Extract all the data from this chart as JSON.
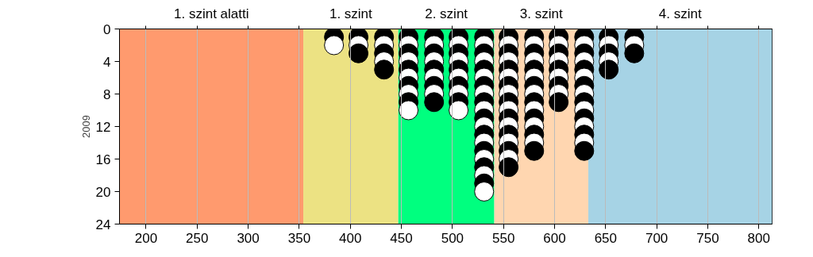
{
  "chart_data": {
    "type": "scatter",
    "ylabel": "2009",
    "x": [
      384,
      384,
      408,
      408,
      408,
      433,
      433,
      433,
      433,
      433,
      457,
      457,
      457,
      457,
      457,
      457,
      457,
      457,
      457,
      457,
      482,
      482,
      482,
      482,
      482,
      482,
      482,
      482,
      482,
      506,
      506,
      506,
      506,
      506,
      506,
      506,
      506,
      506,
      506,
      531,
      531,
      531,
      531,
      531,
      531,
      531,
      531,
      531,
      531,
      531,
      531,
      531,
      531,
      531,
      531,
      531,
      531,
      531,
      531,
      555,
      555,
      555,
      555,
      555,
      555,
      555,
      555,
      555,
      555,
      555,
      555,
      555,
      555,
      555,
      555,
      555,
      580,
      580,
      580,
      580,
      580,
      580,
      580,
      580,
      580,
      580,
      580,
      580,
      580,
      580,
      580,
      604,
      604,
      604,
      604,
      604,
      604,
      604,
      604,
      604,
      629,
      629,
      629,
      629,
      629,
      629,
      629,
      629,
      629,
      629,
      629,
      629,
      629,
      629,
      629,
      653,
      653,
      653,
      653,
      653,
      678,
      678,
      678
    ],
    "values": [
      1,
      2,
      1,
      2,
      3,
      1,
      2,
      3,
      4,
      5,
      1,
      2,
      3,
      4,
      5,
      6,
      7,
      8,
      9,
      10,
      1,
      2,
      3,
      4,
      5,
      6,
      7,
      8,
      9,
      1,
      2,
      3,
      4,
      5,
      6,
      7,
      8,
      9,
      10,
      1,
      2,
      3,
      4,
      5,
      6,
      7,
      8,
      9,
      10,
      11,
      12,
      13,
      14,
      15,
      16,
      17,
      18,
      19,
      20,
      1,
      2,
      3,
      4,
      5,
      6,
      7,
      8,
      9,
      10,
      11,
      12,
      13,
      14,
      15,
      16,
      17,
      1,
      2,
      3,
      4,
      5,
      6,
      7,
      8,
      9,
      10,
      11,
      12,
      13,
      14,
      15,
      1,
      2,
      3,
      4,
      5,
      6,
      7,
      8,
      9,
      1,
      2,
      3,
      4,
      5,
      6,
      7,
      8,
      9,
      10,
      11,
      12,
      13,
      14,
      15,
      1,
      2,
      3,
      4,
      5,
      1,
      2,
      3
    ],
    "colors": [
      "#000000",
      "#ffffff",
      "#000000",
      "#ffffff",
      "#000000",
      "#000000",
      "#ffffff",
      "#000000",
      "#ffffff",
      "#000000",
      "#000000",
      "#ffffff",
      "#000000",
      "#ffffff",
      "#000000",
      "#ffffff",
      "#000000",
      "#ffffff",
      "#000000",
      "#ffffff",
      "#000000",
      "#ffffff",
      "#000000",
      "#ffffff",
      "#000000",
      "#ffffff",
      "#000000",
      "#ffffff",
      "#000000",
      "#000000",
      "#ffffff",
      "#000000",
      "#ffffff",
      "#000000",
      "#ffffff",
      "#000000",
      "#ffffff",
      "#000000",
      "#ffffff",
      "#000000",
      "#ffffff",
      "#000000",
      "#ffffff",
      "#000000",
      "#ffffff",
      "#000000",
      "#ffffff",
      "#000000",
      "#ffffff",
      "#000000",
      "#ffffff",
      "#000000",
      "#ffffff",
      "#000000",
      "#ffffff",
      "#000000",
      "#ffffff",
      "#000000",
      "#ffffff",
      "#000000",
      "#ffffff",
      "#000000",
      "#ffffff",
      "#000000",
      "#ffffff",
      "#000000",
      "#ffffff",
      "#000000",
      "#ffffff",
      "#000000",
      "#ffffff",
      "#000000",
      "#ffffff",
      "#000000",
      "#ffffff",
      "#000000",
      "#000000",
      "#ffffff",
      "#000000",
      "#ffffff",
      "#000000",
      "#ffffff",
      "#000000",
      "#ffffff",
      "#000000",
      "#ffffff",
      "#000000",
      "#ffffff",
      "#000000",
      "#ffffff",
      "#000000",
      "#000000",
      "#ffffff",
      "#000000",
      "#ffffff",
      "#000000",
      "#ffffff",
      "#000000",
      "#ffffff",
      "#000000",
      "#000000",
      "#ffffff",
      "#000000",
      "#ffffff",
      "#000000",
      "#ffffff",
      "#000000",
      "#ffffff",
      "#000000",
      "#ffffff",
      "#000000",
      "#ffffff",
      "#000000",
      "#ffffff",
      "#000000",
      "#000000",
      "#ffffff",
      "#000000",
      "#ffffff",
      "#000000",
      "#000000",
      "#ffffff",
      "#000000"
    ],
    "marker": "circle",
    "xlim": [
      174,
      813
    ],
    "xticks": [
      200,
      250,
      300,
      350,
      400,
      450,
      500,
      550,
      600,
      650,
      700,
      750,
      800
    ],
    "ylim": [
      24,
      0
    ],
    "yticks": [
      0,
      4,
      8,
      12,
      16,
      20,
      24
    ],
    "grid": "x",
    "bands": [
      {
        "axis": "x",
        "from": 174,
        "to": 354,
        "label": "1. szint alatti",
        "color": "#ff9a6e"
      },
      {
        "axis": "x",
        "from": 354,
        "to": 447,
        "label": "1. szint",
        "color": "#ece283"
      },
      {
        "axis": "x",
        "from": 447,
        "to": 541,
        "label": "2. szint",
        "color": "#00ff7f"
      },
      {
        "axis": "x",
        "from": 541,
        "to": 633,
        "label": "3. szint",
        "color": "#ffd6b0"
      },
      {
        "axis": "x",
        "from": 633,
        "to": 813,
        "label": "4. szint",
        "color": "#a6d3e5"
      }
    ]
  }
}
